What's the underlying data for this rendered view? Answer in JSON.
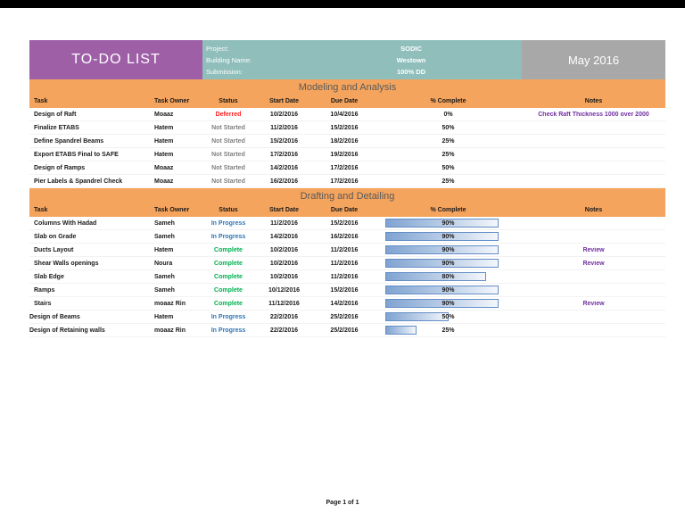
{
  "page": {
    "title": "TO-DO LIST",
    "month": "May 2016",
    "footer": "Page 1 of 1"
  },
  "project": {
    "rows": [
      {
        "label": "Project:",
        "value": "SODIC"
      },
      {
        "label": "Building Name:",
        "value": "Westown"
      },
      {
        "label": "Submission:",
        "value": "100% DD"
      }
    ]
  },
  "columns": [
    "Task",
    "Task Owner",
    "Status",
    "Start Date",
    "Due Date",
    "% Complete",
    "Notes"
  ],
  "colors": {
    "purple": "#9E5FA7",
    "teal": "#8FBEBB",
    "gray": "#A8A8A8",
    "orange": "#F5A45D",
    "notes": "#7030A0",
    "bar_border": "#638EC6",
    "status": {
      "Deferred": "#FF1F1F",
      "Not Started": "#808080",
      "In Progress": "#2E75B6",
      "Complete": "#00B050"
    }
  },
  "sections": [
    {
      "title": "Modeling and Analysis",
      "show_bars": false,
      "rows": [
        {
          "task": "Design of Raft",
          "owner": "Moaaz",
          "status": "Deferred",
          "start": "10/2/2016",
          "due": "10/4/2016",
          "percent_value": 0,
          "percent_label": "0%",
          "notes": "Check Raft Thickness 1000 over 2000"
        },
        {
          "task": "Finalize ETABS",
          "owner": "Hatem",
          "status": "Not Started",
          "start": "11/2/2016",
          "due": "15/2/2016",
          "percent_value": 50,
          "percent_label": "50%",
          "notes": ""
        },
        {
          "task": "Define Spandrel Beams",
          "owner": "Hatem",
          "status": "Not Started",
          "start": "15/2/2016",
          "due": "18/2/2016",
          "percent_value": 25,
          "percent_label": "25%",
          "notes": ""
        },
        {
          "task": "Export ETABS Final to SAFE",
          "owner": "Hatem",
          "status": "Not Started",
          "start": "17/2/2016",
          "due": "19/2/2016",
          "percent_value": 25,
          "percent_label": "25%",
          "notes": ""
        },
        {
          "task": "Design of Ramps",
          "owner": "Moaaz",
          "status": "Not Started",
          "start": "14/2/2016",
          "due": "17/2/2016",
          "percent_value": 50,
          "percent_label": "50%",
          "notes": ""
        },
        {
          "task": "Pier Labels & Spandrel Check",
          "owner": "Moaaz",
          "status": "Not Started",
          "start": "16/2/2016",
          "due": "17/2/2016",
          "percent_value": 25,
          "percent_label": "25%",
          "notes": ""
        }
      ]
    },
    {
      "title": "Drafting and Detailing",
      "show_bars": true,
      "rows": [
        {
          "task": "Columns With Hadad",
          "owner": "Sameh",
          "status": "In Progress",
          "start": "11/2/2016",
          "due": "15/2/2016",
          "percent_value": 90,
          "percent_label": "90%",
          "notes": ""
        },
        {
          "task": "Slab on Grade",
          "owner": "Sameh",
          "status": "In Progress",
          "start": "14/2/2016",
          "due": "16/2/2016",
          "percent_value": 90,
          "percent_label": "90%",
          "notes": ""
        },
        {
          "task": "Ducts Layout",
          "owner": "Hatem",
          "status": "Complete",
          "start": "10/2/2016",
          "due": "11/2/2016",
          "percent_value": 90,
          "percent_label": "90%",
          "notes": "Review"
        },
        {
          "task": "Shear Walls openings",
          "owner": "Noura",
          "status": "Complete",
          "start": "10/2/2016",
          "due": "11/2/2016",
          "percent_value": 90,
          "percent_label": "90%",
          "notes": "Review"
        },
        {
          "task": "Slab Edge",
          "owner": "Sameh",
          "status": "Complete",
          "start": "10/2/2016",
          "due": "11/2/2016",
          "percent_value": 80,
          "percent_label": "80%",
          "notes": ""
        },
        {
          "task": "Ramps",
          "owner": "Sameh",
          "status": "Complete",
          "start": "10/12/2016",
          "due": "15/2/2016",
          "percent_value": 90,
          "percent_label": "90%",
          "notes": ""
        },
        {
          "task": "Stairs",
          "owner": "moaaz Rin",
          "status": "Complete",
          "start": "11/12/2016",
          "due": "14/2/2016",
          "percent_value": 90,
          "percent_label": "90%",
          "notes": "Review"
        },
        {
          "task": "Design of Beams",
          "owner": "Hatem",
          "status": "In Progress",
          "start": "22/2/2016",
          "due": "25/2/2016",
          "percent_value": 50,
          "percent_label": "50%",
          "notes": "",
          "outdent": true
        },
        {
          "task": "Design of Retaining walls",
          "owner": "moaaz Rin",
          "status": "In Progress",
          "start": "22/2/2016",
          "due": "25/2/2016",
          "percent_value": 25,
          "percent_label": "25%",
          "notes": "",
          "outdent": true
        }
      ]
    }
  ]
}
